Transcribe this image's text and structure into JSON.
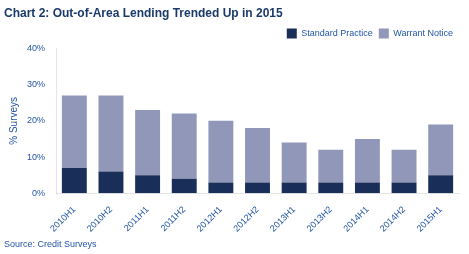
{
  "chart_data": {
    "type": "bar",
    "stacked": true,
    "title": "Chart 2: Out-of-Area Lending Trended Up in 2015",
    "ylabel": "% Surveys",
    "annotations": [
      "Source: Credit Surveys"
    ],
    "categories": [
      "2010H1",
      "2010H2",
      "2011H1",
      "2011H2",
      "2012H1",
      "2012H2",
      "2013H1",
      "2013H2",
      "2014H1",
      "2014H2",
      "2015H1"
    ],
    "series": [
      {
        "name": "Standard Practice",
        "color": "#1a2e5a",
        "values": [
          7,
          6,
          5,
          4,
          3,
          3,
          3,
          3,
          3,
          3,
          5
        ]
      },
      {
        "name": "Warrant Notice",
        "color": "#9097b8",
        "values": [
          20,
          21,
          18,
          18,
          17,
          15,
          11,
          9,
          12,
          9,
          14
        ]
      }
    ],
    "ylim": [
      0,
      40
    ],
    "yticks": [
      {
        "value": 0,
        "label": "0%"
      },
      {
        "value": 10,
        "label": "10%"
      },
      {
        "value": 20,
        "label": "20%"
      },
      {
        "value": 30,
        "label": "30%"
      },
      {
        "value": 40,
        "label": "40%"
      }
    ],
    "grid": false,
    "legend": "upper right"
  }
}
